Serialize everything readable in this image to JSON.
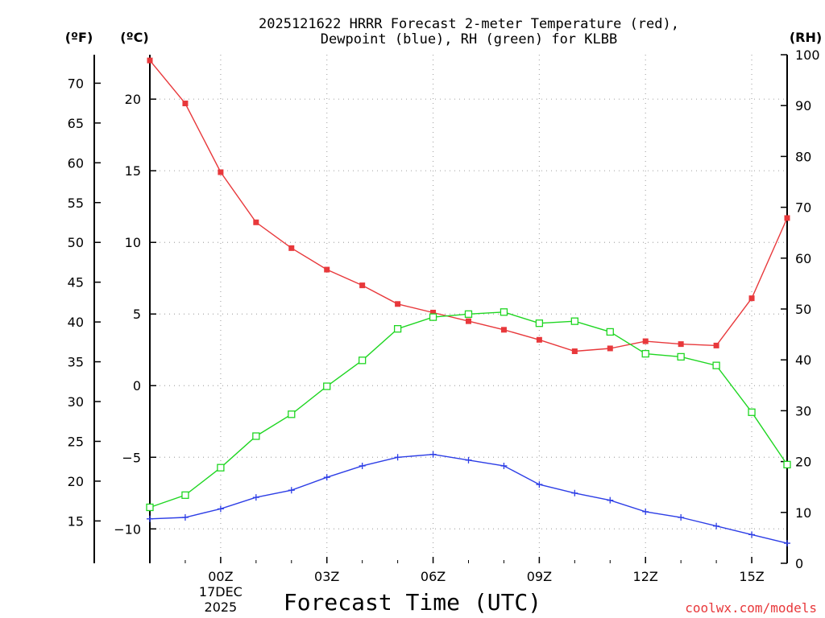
{
  "chart_data": {
    "type": "line",
    "title_lines": [
      "2025121622 HRRR Forecast 2-meter Temperature (red),",
      "Dewpoint (blue), RH (green) for KLBB"
    ],
    "xlabel": "Forecast Time (UTC)",
    "x_hours": [
      -2,
      -1,
      0,
      1,
      2,
      3,
      4,
      5,
      6,
      7,
      8,
      9,
      10,
      11,
      12,
      13,
      14,
      15,
      16
    ],
    "x_ticks": [
      {
        "hour": 0,
        "label": "00Z",
        "sub1": "17DEC",
        "sub2": "2025"
      },
      {
        "hour": 3,
        "label": "03Z"
      },
      {
        "hour": 6,
        "label": "06Z"
      },
      {
        "hour": 9,
        "label": "09Z"
      },
      {
        "hour": 12,
        "label": "12Z"
      },
      {
        "hour": 15,
        "label": "15Z"
      }
    ],
    "xlim": [
      -2,
      16
    ],
    "celsius_axis": {
      "unit": "(ºC)",
      "ylim": [
        -12.4,
        23.1
      ],
      "ticks": [
        -10,
        -5,
        0,
        5,
        10,
        15,
        20
      ]
    },
    "fahrenheit_axis": {
      "unit": "(ºF)",
      "ticks": [
        15,
        20,
        25,
        30,
        35,
        40,
        45,
        50,
        55,
        60,
        65,
        70
      ]
    },
    "rh_axis": {
      "unit": "(RH)",
      "ylim": [
        0,
        100
      ],
      "ticks": [
        0,
        10,
        20,
        30,
        40,
        50,
        60,
        70,
        80,
        90,
        100
      ]
    },
    "series": [
      {
        "name": "Temperature",
        "axis": "celsius",
        "color": "#e8383b",
        "values": [
          22.7,
          19.7,
          14.9,
          11.4,
          9.6,
          8.1,
          7.0,
          5.7,
          5.1,
          4.5,
          3.9,
          3.2,
          2.4,
          2.6,
          3.1,
          2.9,
          2.8,
          6.1,
          11.7
        ]
      },
      {
        "name": "Dewpoint",
        "axis": "celsius",
        "color": "#2d3ee6",
        "values": [
          -9.3,
          -9.2,
          -8.6,
          -7.8,
          -7.3,
          -6.4,
          -5.6,
          -5.0,
          -4.8,
          -5.2,
          -5.6,
          -6.9,
          -7.5,
          -8.0,
          -8.8,
          -9.2,
          -9.8,
          -10.4,
          -11.0
        ]
      },
      {
        "name": "RH",
        "axis": "rh",
        "color": "#1fd622",
        "values": [
          11.0,
          13.4,
          18.8,
          25.0,
          29.3,
          34.8,
          39.9,
          46.1,
          48.4,
          49.0,
          49.4,
          47.2,
          47.6,
          45.5,
          41.2,
          40.6,
          38.9,
          29.7,
          19.4
        ]
      }
    ]
  },
  "credit": "coolwx.com/models"
}
